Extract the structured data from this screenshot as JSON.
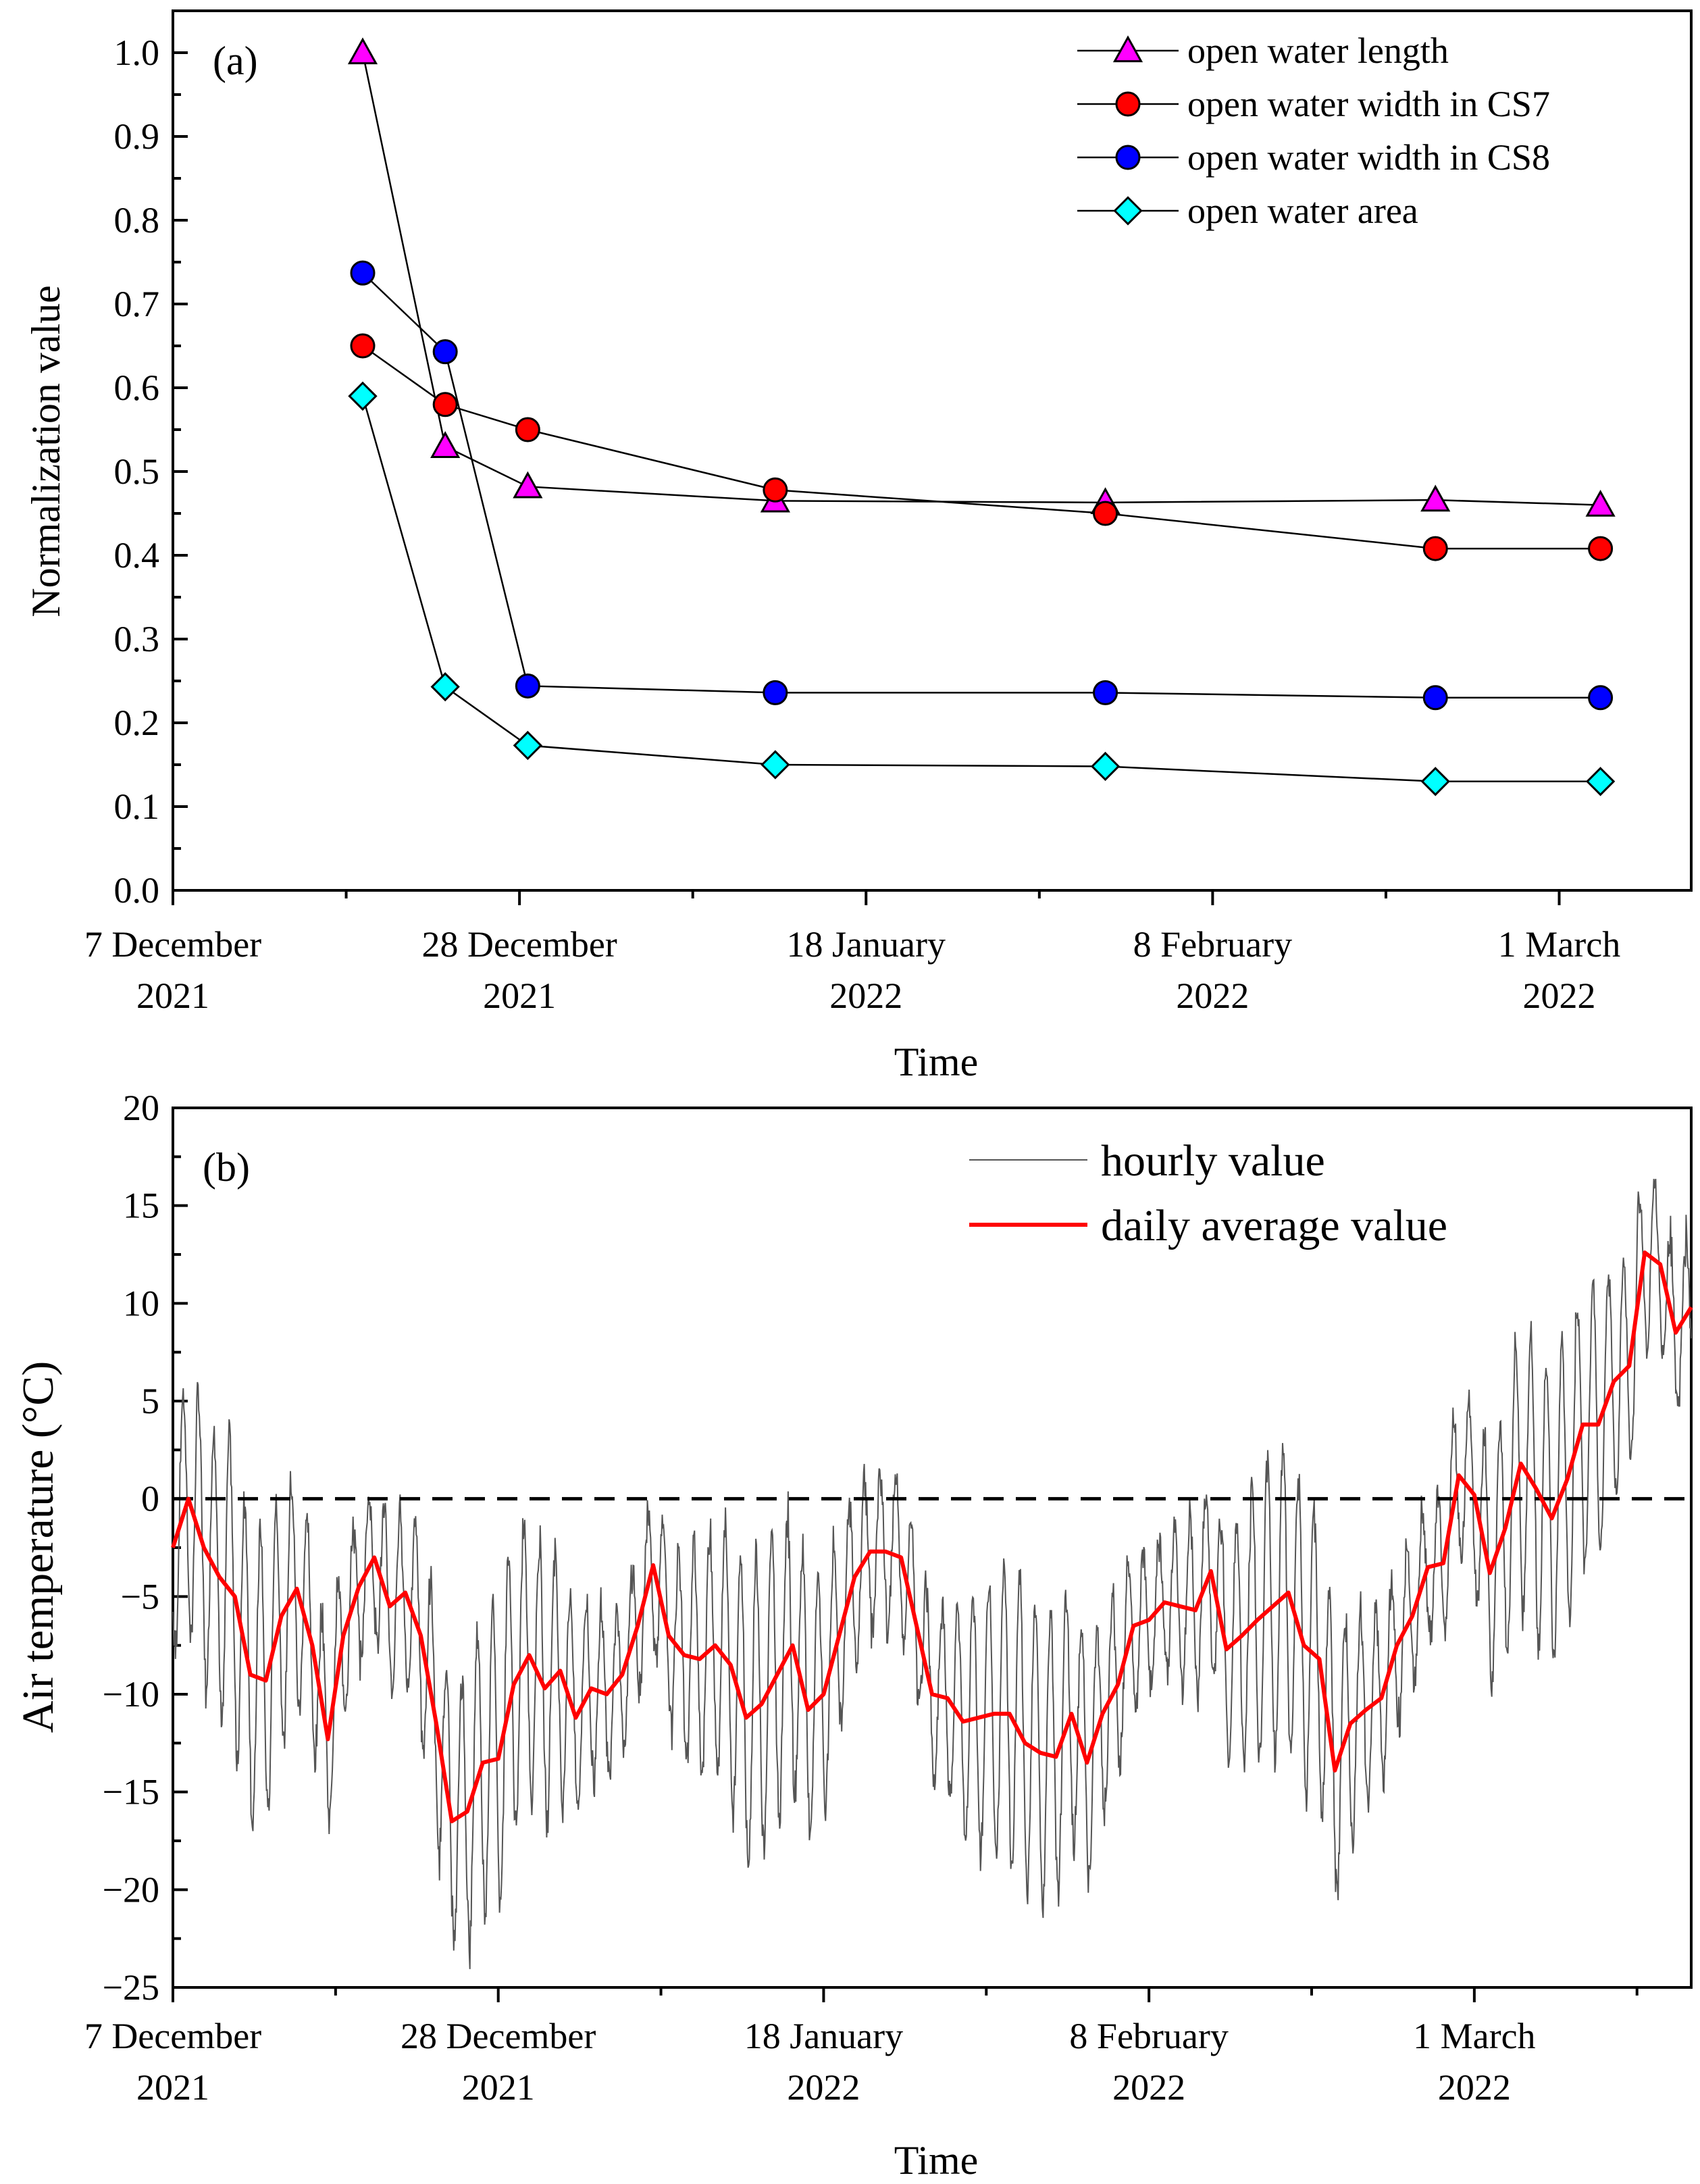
{
  "chart_data": [
    {
      "panel": "(a)",
      "type": "line",
      "xlabel": "Time",
      "ylabel": "Normalization value",
      "ylim": [
        0,
        1.05
      ],
      "yticks": [
        "0.0",
        "0.1",
        "0.2",
        "0.3",
        "0.4",
        "0.5",
        "0.6",
        "0.7",
        "0.8",
        "0.9",
        "1.0"
      ],
      "xlim_days": [
        0,
        92
      ],
      "xticks": [
        {
          "day": 0,
          "line1": "7 December",
          "line2": "2021"
        },
        {
          "day": 21,
          "line1": "28 December",
          "line2": "2021"
        },
        {
          "day": 42,
          "line1": "18 January",
          "line2": "2022"
        },
        {
          "day": 63,
          "line1": "8 February",
          "line2": "2022"
        },
        {
          "day": 84,
          "line1": "1 March",
          "line2": "2022"
        }
      ],
      "legend_position": "top-right",
      "x_days": [
        11.5,
        16.5,
        21.5,
        36.5,
        56.5,
        76.5,
        86.5
      ],
      "series": [
        {
          "name": "open water length",
          "marker": "triangle",
          "color": "#ff00ff",
          "x": [
            11.5,
            16.5,
            21.5,
            36.5,
            56.5,
            76.5,
            86.5
          ],
          "values": [
            1.0,
            0.53,
            0.482,
            0.465,
            0.463,
            0.466,
            0.46
          ]
        },
        {
          "name": "open water width in CS7",
          "marker": "circle",
          "color": "#ff0000",
          "x": [
            11.5,
            16.5,
            21.5,
            36.5,
            56.5,
            76.5,
            86.5
          ],
          "values": [
            0.65,
            0.58,
            0.55,
            0.478,
            0.45,
            0.408,
            0.408
          ]
        },
        {
          "name": "open water width in CS8",
          "marker": "circle",
          "color": "#0000ff",
          "x": [
            11.5,
            16.5,
            21.5,
            36.5,
            56.5,
            76.5,
            86.5
          ],
          "values": [
            0.737,
            0.643,
            0.244,
            0.236,
            0.236,
            0.23,
            0.23
          ]
        },
        {
          "name": "open water area",
          "marker": "diamond",
          "color": "#00ffff",
          "x": [
            11.5,
            16.5,
            21.5,
            36.5,
            56.5,
            76.5,
            86.5
          ],
          "values": [
            0.59,
            0.243,
            0.173,
            0.15,
            0.148,
            0.13,
            0.13
          ]
        }
      ]
    },
    {
      "panel": "(b)",
      "type": "line",
      "xlabel": "Time",
      "ylabel": "Air temperature (°C)",
      "ylim": [
        -25,
        20
      ],
      "yticks": [
        "−25",
        "−20",
        "−15",
        "−10",
        "−5",
        "0",
        "5",
        "10",
        "15",
        "20"
      ],
      "ytick_values": [
        -25,
        -20,
        -15,
        -10,
        -5,
        0,
        5,
        10,
        15,
        20
      ],
      "xlim_days": [
        0,
        98
      ],
      "xticks": [
        {
          "day": 0,
          "line1": "7 December",
          "line2": "2021"
        },
        {
          "day": 21,
          "line1": "28 December",
          "line2": "2021"
        },
        {
          "day": 42,
          "line1": "18 January",
          "line2": "2022"
        },
        {
          "day": 63,
          "line1": "8 February",
          "line2": "2022"
        },
        {
          "day": 84,
          "line1": "1 March",
          "line2": "2022"
        }
      ],
      "reference_line": {
        "y": 0,
        "style": "dashed"
      },
      "legend_position": "top-right",
      "series": [
        {
          "name": "hourly value",
          "color": "#555555",
          "amplitude_note": "diurnal cycle around daily mean"
        },
        {
          "name": "daily average value",
          "color": "#ff0000",
          "x": [
            0,
            1,
            2,
            3,
            4,
            5,
            6,
            7,
            8,
            9,
            10,
            11,
            12,
            13,
            14,
            15,
            16,
            17,
            18,
            19,
            20,
            21,
            22,
            23,
            24,
            25,
            26,
            27,
            28,
            29,
            30,
            31,
            32,
            33,
            34,
            35,
            36,
            37,
            38,
            39,
            40,
            41,
            42,
            43,
            44,
            45,
            46,
            47,
            48,
            49,
            50,
            51,
            52,
            53,
            54,
            55,
            56,
            57,
            58,
            59,
            60,
            61,
            62,
            63,
            64,
            65,
            66,
            67,
            68,
            69,
            70,
            71,
            72,
            73,
            74,
            75,
            76,
            77,
            78,
            79,
            80,
            81,
            82,
            83,
            84,
            85,
            86,
            87,
            88,
            89,
            90,
            91,
            92,
            93,
            94,
            95,
            96,
            97,
            98
          ],
          "values": [
            -2.5,
            0,
            -2.5,
            -4,
            -5,
            -9,
            -9.3,
            -6,
            -4.6,
            -7.5,
            -12.3,
            -7,
            -4.5,
            -3,
            -5.5,
            -4.8,
            -7,
            -11.5,
            -16.5,
            -16,
            -13.5,
            -13.3,
            -9.5,
            -8,
            -9.7,
            -8.8,
            -11.2,
            -9.7,
            -10,
            -9,
            -6.5,
            -3.4,
            -7,
            -8,
            -8.2,
            -7.5,
            -8.5,
            -11.2,
            -10.5,
            -9,
            -7.5,
            -10.8,
            -10,
            -7,
            -4,
            -2.7,
            -2.7,
            -3,
            -6.5,
            -10,
            -10.2,
            -11.4,
            -11.2,
            -11,
            -11,
            -12.5,
            -13,
            -13.2,
            -11,
            -13.5,
            -11,
            -9.5,
            -6.5,
            -6.2,
            -5.3,
            -5.5,
            -5.7,
            -3.7,
            -7.7,
            -7,
            -6.2,
            -5.5,
            -4.8,
            -7.5,
            -8.2,
            -13.9,
            -11.5,
            -10.8,
            -10.2,
            -7.5,
            -6,
            -3.5,
            -3.3,
            1.2,
            0.2,
            -3.8,
            -1.5,
            1.8,
            0.5,
            -1,
            1,
            3.8,
            3.8,
            6,
            6.8,
            12.6,
            12,
            8.5,
            9.8
          ]
        }
      ]
    }
  ],
  "legend_a": [
    "open water length",
    "open water width in CS7",
    "open water width in CS8",
    "open water area"
  ],
  "legend_b": [
    "hourly value",
    "daily average value"
  ]
}
